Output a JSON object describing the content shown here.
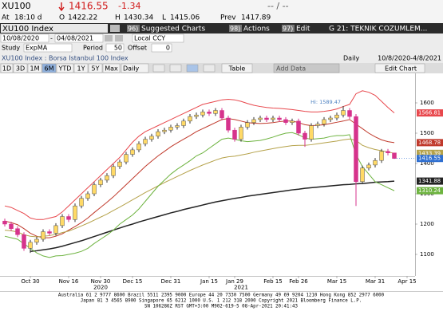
{
  "quote": {
    "ticker": "XU100",
    "last": 1416.55,
    "change": -1.34,
    "bid_ask": "-- / --",
    "time_label": "At",
    "time": "18:10 d",
    "open_label": "O",
    "open": 1422.22,
    "high_label": "H",
    "high": 1430.34,
    "low_label": "L",
    "low": 1415.06,
    "prev_label": "Prev",
    "prev": 1417.89
  },
  "menu": {
    "security": "XU100 Index",
    "items": [
      {
        "code": "96)",
        "label": "Suggested Charts"
      },
      {
        "code": "98)",
        "label": "Actions"
      },
      {
        "code": "97)",
        "label": "Edit"
      }
    ],
    "page": "G 21: TEKNIK COZUMLEM..."
  },
  "settings": {
    "start": "10/08/2020",
    "separator": "-",
    "end": "04/08/2021",
    "currency": "Local CCY",
    "study_label": "Study",
    "study": "ExpMA",
    "period_label": "Period",
    "period": 50,
    "offset_label": "Offset",
    "offset": 0
  },
  "info": {
    "description": "XU100 Index : Borsa Istanbul 100 Index",
    "frequency": "Daily",
    "range": "10/8/2020-4/8/2021"
  },
  "toolbar": {
    "ranges": [
      "1D",
      "3D",
      "1M",
      "6M",
      "YTD",
      "1Y",
      "5Y",
      "Max"
    ],
    "active": "6M",
    "frequency": "Daily",
    "table": "Table",
    "add_data": "Add Data",
    "edit_chart": "Edit Chart"
  },
  "chart_data": {
    "type": "candlestick",
    "categories": [
      null,
      null,
      null,
      null,
      "Oct 30",
      null,
      null,
      null,
      null,
      null,
      "Nov 16",
      null,
      null,
      null,
      null,
      "Nov 30",
      null,
      null,
      null,
      null,
      "Dec 15",
      null,
      null,
      null,
      null,
      null,
      "Dec 31",
      null,
      null,
      null,
      null,
      null,
      "Jan 15",
      null,
      null,
      null,
      "Jan 29",
      null,
      null,
      null,
      null,
      null,
      "Feb 15",
      null,
      null,
      null,
      "Feb 26",
      null,
      null,
      null,
      null,
      null,
      "Mar 15",
      null,
      null,
      null,
      null,
      null,
      "Mar 31",
      null,
      null,
      null,
      null,
      "Apr 15"
    ],
    "year_labels": [
      "2020",
      "2021"
    ],
    "open": [
      1210,
      1200,
      1185,
      1165,
      1120,
      1140,
      1150,
      1175,
      1170,
      1195,
      1225,
      1215,
      1260,
      1285,
      1300,
      1330,
      1345,
      1360,
      1390,
      1405,
      1430,
      1445,
      1465,
      1480,
      1490,
      1505,
      1510,
      1520,
      1525,
      1540,
      1555,
      1560,
      1570,
      1565,
      1575,
      1550,
      1510,
      1480,
      1520,
      1535,
      1545,
      1550,
      1545,
      1550,
      1545,
      1535,
      1540,
      1500,
      1480,
      1525,
      1530,
      1545,
      1550,
      1560,
      1575,
      1555,
      1340,
      1385,
      1395,
      1410,
      1440,
      1435,
      null,
      null
    ],
    "high": [
      1218,
      1208,
      1193,
      1173,
      1148,
      1158,
      1183,
      1183,
      1203,
      1233,
      1233,
      1268,
      1293,
      1308,
      1338,
      1353,
      1368,
      1398,
      1413,
      1438,
      1453,
      1473,
      1488,
      1498,
      1513,
      1518,
      1528,
      1533,
      1548,
      1563,
      1568,
      1578,
      1578,
      1583,
      1583,
      1558,
      1518,
      1528,
      1543,
      1553,
      1558,
      1558,
      1558,
      1558,
      1553,
      1548,
      1548,
      1508,
      1533,
      1538,
      1553,
      1558,
      1568,
      1589.47,
      1583,
      1563,
      1393,
      1403,
      1418,
      1448,
      1448,
      1430.34,
      null,
      null
    ],
    "low": [
      1192,
      1177,
      1157,
      1112,
      1105,
      1132,
      1142,
      1162,
      1162,
      1187,
      1207,
      1207,
      1252,
      1277,
      1292,
      1322,
      1337,
      1352,
      1382,
      1397,
      1422,
      1437,
      1457,
      1472,
      1482,
      1497,
      1502,
      1512,
      1517,
      1532,
      1547,
      1552,
      1557,
      1557,
      1542,
      1502,
      1472,
      1472,
      1512,
      1527,
      1537,
      1537,
      1537,
      1537,
      1527,
      1527,
      1492,
      1455,
      1472,
      1517,
      1522,
      1537,
      1542,
      1552,
      1547,
      1260,
      1332,
      1377,
      1387,
      1402,
      1427,
      1415.06,
      null,
      null
    ],
    "close": [
      1200,
      1185,
      1165,
      1120,
      1140,
      1150,
      1175,
      1170,
      1195,
      1225,
      1215,
      1260,
      1285,
      1300,
      1330,
      1345,
      1360,
      1390,
      1405,
      1430,
      1445,
      1465,
      1480,
      1490,
      1505,
      1510,
      1520,
      1525,
      1540,
      1555,
      1560,
      1570,
      1565,
      1575,
      1550,
      1510,
      1480,
      1520,
      1535,
      1545,
      1550,
      1545,
      1550,
      1545,
      1535,
      1540,
      1500,
      1480,
      1525,
      1530,
      1545,
      1550,
      1560,
      1575,
      1555,
      1340,
      1385,
      1395,
      1410,
      1440,
      1435,
      1416.55,
      null,
      null
    ],
    "up_color": "#ffd966",
    "down_color": "#d6338c",
    "last_color": "#2f6fd0",
    "series": [
      {
        "color": "#e8474c",
        "values": [
          1260,
          1255,
          1245,
          1235,
          1220,
          1215,
          1215,
          1220,
          1225,
          1240,
          1260,
          1280,
          1300,
          1320,
          1340,
          1360,
          1380,
          1400,
          1420,
          1445,
          1470,
          1490,
          1505,
          1515,
          1525,
          1535,
          1545,
          1555,
          1565,
          1575,
          1585,
          1595,
          1600,
          1605,
          1610,
          1612,
          1610,
          1605,
          1598,
          1592,
          1588,
          1585,
          1583,
          1582,
          1580,
          1578,
          1575,
          1572,
          1570,
          1570,
          1572,
          1575,
          1580,
          1588,
          1595,
          1630,
          1640,
          1635,
          1625,
          1605,
          1585,
          1566.81,
          null,
          null
        ]
      },
      {
        "color": "#c0392b",
        "values": [
          1210,
          1205,
          1198,
          1185,
          1170,
          1160,
          1155,
          1155,
          1160,
          1168,
          1180,
          1192,
          1205,
          1220,
          1238,
          1255,
          1272,
          1290,
          1310,
          1330,
          1350,
          1370,
          1390,
          1408,
          1425,
          1440,
          1455,
          1468,
          1480,
          1492,
          1505,
          1515,
          1525,
          1535,
          1545,
          1548,
          1545,
          1540,
          1535,
          1533,
          1532,
          1533,
          1535,
          1538,
          1540,
          1540,
          1535,
          1528,
          1525,
          1526,
          1528,
          1532,
          1536,
          1540,
          1545,
          1530,
          1515,
          1500,
          1488,
          1478,
          1472,
          1468.78,
          null,
          null
        ]
      },
      {
        "color": "#b5a24a",
        "values": [
          1180,
          1178,
          1174,
          1165,
          1160,
          1158,
          1160,
          1162,
          1166,
          1172,
          1177,
          1185,
          1194,
          1203,
          1213,
          1223,
          1233,
          1245,
          1256,
          1268,
          1280,
          1292,
          1304,
          1315,
          1326,
          1337,
          1347,
          1357,
          1367,
          1377,
          1386,
          1395,
          1403,
          1411,
          1418,
          1422,
          1424,
          1428,
          1432,
          1437,
          1441,
          1445,
          1449,
          1453,
          1456,
          1459,
          1460,
          1460,
          1462,
          1465,
          1468,
          1471,
          1474,
          1478,
          1481,
          1476,
          1460,
          1452,
          1446,
          1442,
          1438,
          1433.39,
          null,
          null
        ]
      },
      {
        "color": "#222222",
        "values": [
          null,
          null,
          null,
          null,
          1110,
          1112,
          1115,
          1118,
          1122,
          1127,
          1133,
          1139,
          1145,
          1152,
          1159,
          1166,
          1173,
          1180,
          1187,
          1194,
          1200,
          1207,
          1213,
          1219,
          1225,
          1231,
          1237,
          1242,
          1248,
          1253,
          1258,
          1263,
          1268,
          1273,
          1277,
          1281,
          1285,
          1288,
          1292,
          1295,
          1298,
          1301,
          1304,
          1307,
          1310,
          1313,
          1315,
          1318,
          1320,
          1322,
          1324,
          1326,
          1328,
          1330,
          1331,
          1333,
          1334,
          1336,
          1338,
          1339,
          1340,
          1341.88,
          null,
          null
        ]
      },
      {
        "color": "#6db33f",
        "values": [
          1160,
          1155,
          1150,
          1135,
          1120,
          1105,
          1095,
          1090,
          1095,
          1096,
          1100,
          1104,
          1110,
          1120,
          1136,
          1150,
          1164,
          1180,
          1200,
          1215,
          1230,
          1250,
          1275,
          1300,
          1325,
          1345,
          1365,
          1381,
          1395,
          1409,
          1425,
          1435,
          1450,
          1465,
          1480,
          1484,
          1480,
          1475,
          1472,
          1474,
          1476,
          1481,
          1487,
          1494,
          1500,
          1502,
          1495,
          1484,
          1480,
          1482,
          1484,
          1489,
          1492,
          1492,
          1495,
          1430,
          1390,
          1365,
          1340,
          1330,
          1320,
          1310.24,
          null,
          null
        ]
      }
    ],
    "annotation": "Hi: 1589.47",
    "ylim": [
      1030,
      1690
    ],
    "yticks": [
      1100,
      1200,
      1300,
      1400,
      1500,
      1600
    ],
    "grid": false
  },
  "footer": [
    "Australia 61 2 9777 8600 Brazil 5511 2395 9000 Europe 44 20 7330 7500 Germany 49 69 9204 1210 Hong Kong 852 2977 6000",
    "Japan 81 3 4565 8900      Singapore 65 6212 1000      U.S. 1 212 318 2000      Copyright 2021 Bloomberg Finance L.P.",
    "SN 106286Z RST  GMT+3:00 M902-619-5 08-Apr-2021 20:41:43"
  ]
}
